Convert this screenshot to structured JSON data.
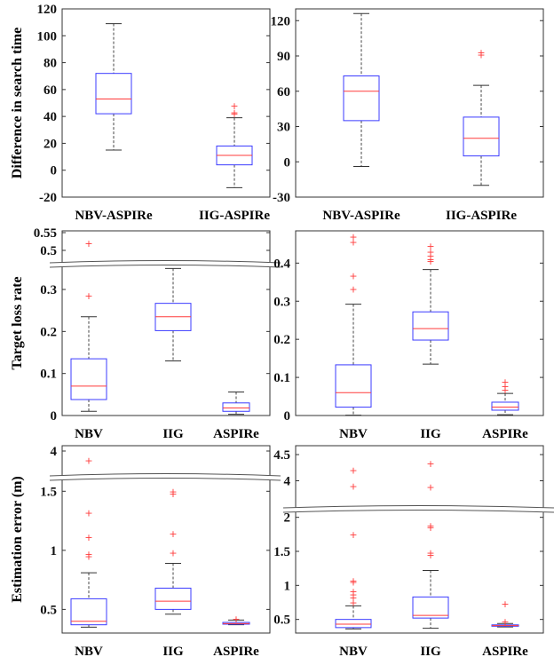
{
  "chart_data": [
    {
      "type": "box",
      "ylabel": "Difference in search time",
      "categories": [
        "NBV-ASPIRe",
        "IIG-ASPIRe"
      ],
      "ylim": [
        -20,
        120
      ],
      "yticks": [
        -20,
        0,
        20,
        40,
        60,
        80,
        100,
        120
      ],
      "boxes": [
        {
          "min": 15,
          "q1": 42,
          "median": 53,
          "q3": 72,
          "max": 109,
          "outliers": []
        },
        {
          "min": -13,
          "q1": 4,
          "median": 11,
          "q3": 18,
          "max": 39,
          "outliers": [
            42,
            43,
            48
          ]
        }
      ]
    },
    {
      "type": "box",
      "ylabel": "",
      "categories": [
        "NBV-ASPIRe",
        "IIG-ASPIRe"
      ],
      "ylim": [
        -30,
        130
      ],
      "yticks": [
        -30,
        0,
        30,
        60,
        90,
        120
      ],
      "boxes": [
        {
          "min": -4,
          "q1": 35,
          "median": 60,
          "q3": 73,
          "max": 126,
          "outliers": []
        },
        {
          "min": -20,
          "q1": 5,
          "median": 20,
          "q3": 38,
          "max": 65,
          "outliers": [
            91,
            93
          ]
        }
      ]
    },
    {
      "type": "box",
      "ylabel": "Target loss rate",
      "categories": [
        "NBV",
        "IIG",
        "ASPIRe"
      ],
      "ylim": [
        0,
        0.55
      ],
      "yticks": [
        0,
        0.1,
        0.2,
        0.3,
        0.5,
        0.55
      ],
      "ytick_labels": [
        "0",
        "0.1",
        "0.2",
        "0.3",
        "0.5",
        "0.55"
      ],
      "axis_break": true,
      "boxes": [
        {
          "min": 0.01,
          "q1": 0.038,
          "median": 0.07,
          "q3": 0.135,
          "max": 0.235,
          "outliers": [
            0.285,
            0.52
          ]
        },
        {
          "min": 0.13,
          "q1": 0.202,
          "median": 0.235,
          "q3": 0.267,
          "max": 0.35,
          "outliers": []
        },
        {
          "min": 0.003,
          "q1": 0.01,
          "median": 0.018,
          "q3": 0.03,
          "max": 0.056,
          "outliers": []
        }
      ]
    },
    {
      "type": "box",
      "ylabel": "",
      "categories": [
        "NBV",
        "IIG",
        "ASPIRe"
      ],
      "ylim": [
        0,
        0.48
      ],
      "yticks": [
        0,
        0.1,
        0.2,
        0.3,
        0.4
      ],
      "boxes": [
        {
          "min": 0.001,
          "q1": 0.022,
          "median": 0.06,
          "q3": 0.133,
          "max": 0.292,
          "outliers": [
            0.332,
            0.367,
            0.455,
            0.47
          ]
        },
        {
          "min": 0.135,
          "q1": 0.198,
          "median": 0.228,
          "q3": 0.272,
          "max": 0.383,
          "outliers": [
            0.405,
            0.41,
            0.42,
            0.43,
            0.445
          ]
        },
        {
          "min": 0.002,
          "q1": 0.014,
          "median": 0.022,
          "q3": 0.035,
          "max": 0.058,
          "outliers": [
            0.068,
            0.077,
            0.088
          ]
        }
      ]
    },
    {
      "type": "box",
      "ylabel": "Estimation error (m)",
      "categories": [
        "NBV",
        "IIG",
        "ASPIRe"
      ],
      "ylim": [
        0.3,
        4
      ],
      "yticks": [
        0.5,
        1,
        1.5,
        4
      ],
      "ytick_labels": [
        "0.5",
        "1",
        "1.5",
        "4"
      ],
      "axis_break": true,
      "boxes": [
        {
          "min": 0.35,
          "q1": 0.37,
          "median": 0.4,
          "q3": 0.59,
          "max": 0.81,
          "outliers": [
            0.95,
            0.97,
            1.11,
            1.32,
            3.84
          ]
        },
        {
          "min": 0.46,
          "q1": 0.5,
          "median": 0.57,
          "q3": 0.68,
          "max": 0.89,
          "outliers": [
            0.98,
            1.14,
            1.48,
            1.5
          ]
        },
        {
          "min": 0.37,
          "q1": 0.375,
          "median": 0.38,
          "q3": 0.39,
          "max": 0.41,
          "outliers": [
            0.42
          ]
        }
      ]
    },
    {
      "type": "box",
      "ylabel": "",
      "categories": [
        "NBV",
        "IIG",
        "ASPIRe"
      ],
      "ylim": [
        0.3,
        4.5
      ],
      "yticks": [
        0.5,
        1,
        1.5,
        2,
        4,
        4.5
      ],
      "ytick_labels": [
        "0.5",
        "1",
        "1.5",
        "2",
        "4",
        "4.5"
      ],
      "axis_break": true,
      "boxes": [
        {
          "min": 0.36,
          "q1": 0.38,
          "median": 0.43,
          "q3": 0.5,
          "max": 0.7,
          "outliers": [
            0.75,
            0.82,
            0.87,
            0.91,
            1.05,
            1.07,
            1.75,
            3.9,
            4.2
          ]
        },
        {
          "min": 0.37,
          "q1": 0.52,
          "median": 0.56,
          "q3": 0.83,
          "max": 1.22,
          "outliers": [
            1.45,
            1.48,
            1.85,
            1.88,
            3.88,
            4.33
          ]
        },
        {
          "min": 0.39,
          "q1": 0.4,
          "median": 0.41,
          "q3": 0.42,
          "max": 0.44,
          "outliers": [
            0.47,
            0.73
          ]
        }
      ]
    }
  ]
}
